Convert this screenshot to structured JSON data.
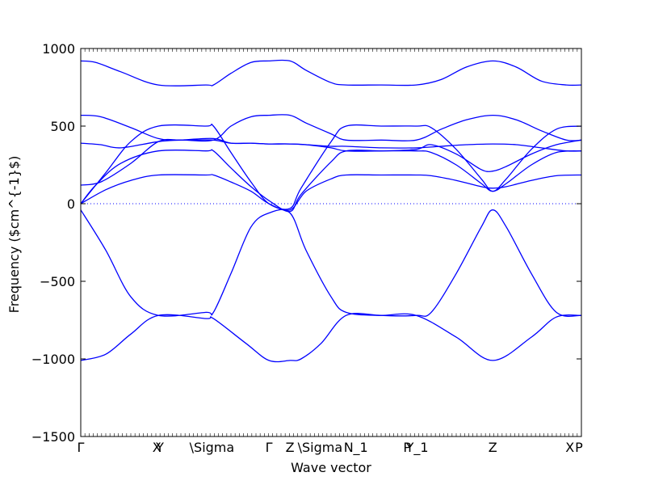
{
  "chart_data": {
    "type": "line",
    "xlabel": "Wave vector",
    "ylabel": "Frequency ($cm^{-1}$)",
    "ylim": [
      -1500,
      1000
    ],
    "y_ticks": [
      1000,
      500,
      0,
      -500,
      -1000,
      -1500
    ],
    "y_tick_labels": [
      "1000",
      "500",
      "0",
      "−500",
      "−1000",
      "−1500"
    ],
    "x_ticks": [
      {
        "label": "Γ",
        "x": 0.0
      },
      {
        "label": "X",
        "x": 0.152
      },
      {
        "label": "Y",
        "x": 0.158
      },
      {
        "label": "\\Sigma",
        "x": 0.262
      },
      {
        "label": "Γ",
        "x": 0.376
      },
      {
        "label": "Z",
        "x": 0.418
      },
      {
        "label": "\\Sigma",
        "x": 0.478
      },
      {
        "label": "N",
        "x": 0.535
      },
      {
        "label": "_1",
        "x": 0.559
      },
      {
        "label": "P",
        "x": 0.652
      },
      {
        "label": "Y_1",
        "x": 0.672
      },
      {
        "label": "Z",
        "x": 0.823
      },
      {
        "label": "X",
        "x": 0.977
      },
      {
        "label": "P",
        "x": 0.995
      }
    ],
    "zero_line": true,
    "line_color": "#0000ff",
    "series": [
      {
        "x": [
          0.0,
          0.05,
          0.1,
          0.155,
          0.25,
          0.265,
          0.33,
          0.376,
          0.418,
          0.44,
          0.48,
          0.53,
          0.6,
          0.67,
          0.75,
          0.823,
          0.9,
          0.95,
          1.0
        ],
        "y": [
          -1010,
          -970,
          -840,
          -720,
          -740,
          -740,
          -900,
          -1010,
          -1010,
          -1000,
          -900,
          -720,
          -720,
          -720,
          -860,
          -1010,
          -860,
          -730,
          -720
        ]
      },
      {
        "x": [
          0.0,
          0.05,
          0.1,
          0.155,
          0.25,
          0.265,
          0.3,
          0.34,
          0.376,
          0.418,
          0.45,
          0.5,
          0.53,
          0.6,
          0.67,
          0.7,
          0.75,
          0.8,
          0.823,
          0.85,
          0.9,
          0.95,
          1.0
        ],
        "y": [
          -40,
          -300,
          -600,
          -720,
          -700,
          -700,
          -450,
          -150,
          -60,
          -60,
          -300,
          -600,
          -700,
          -720,
          -720,
          -700,
          -450,
          -150,
          -40,
          -150,
          -450,
          -700,
          -720
        ]
      },
      {
        "x": [
          0.0,
          0.05,
          0.1,
          0.155,
          0.25,
          0.265,
          0.3,
          0.34,
          0.376,
          0.418,
          0.45,
          0.5,
          0.53,
          0.6,
          0.67,
          0.7,
          0.75,
          0.8,
          0.823,
          0.85,
          0.9,
          0.95,
          1.0
        ],
        "y": [
          0,
          90,
          150,
          185,
          185,
          185,
          140,
          80,
          0,
          -40,
          80,
          160,
          185,
          185,
          185,
          180,
          150,
          110,
          100,
          110,
          150,
          180,
          185
        ]
      },
      {
        "x": [
          0.0,
          0.03,
          0.08,
          0.155,
          0.25,
          0.265,
          0.3,
          0.34,
          0.376,
          0.418,
          0.44,
          0.5,
          0.53,
          0.6,
          0.67,
          0.7,
          0.75,
          0.8,
          0.823,
          0.85,
          0.9,
          0.95,
          1.0
        ],
        "y": [
          0,
          120,
          260,
          340,
          340,
          340,
          230,
          110,
          20,
          -50,
          60,
          270,
          340,
          340,
          340,
          330,
          250,
          130,
          80,
          130,
          250,
          330,
          340
        ]
      },
      {
        "x": [
          0.0,
          0.05,
          0.1,
          0.155,
          0.25,
          0.265,
          0.3,
          0.34,
          0.376,
          0.418,
          0.44,
          0.5,
          0.53,
          0.6,
          0.67,
          0.7,
          0.75,
          0.8,
          0.823,
          0.85,
          0.9,
          0.95,
          1.0
        ],
        "y": [
          0,
          200,
          400,
          500,
          500,
          500,
          330,
          140,
          0,
          -30,
          100,
          400,
          500,
          500,
          500,
          490,
          350,
          160,
          80,
          160,
          350,
          480,
          500
        ]
      },
      {
        "x": [
          0.0,
          0.04,
          0.1,
          0.155,
          0.2,
          0.265,
          0.3,
          0.34,
          0.376,
          0.418,
          0.45,
          0.5,
          0.53,
          0.6,
          0.67,
          0.72,
          0.77,
          0.823,
          0.87,
          0.92,
          0.97,
          1.0
        ],
        "y": [
          120,
          140,
          260,
          400,
          410,
          410,
          500,
          560,
          570,
          570,
          520,
          450,
          410,
          410,
          410,
          480,
          540,
          570,
          540,
          470,
          410,
          410
        ]
      },
      {
        "x": [
          0.0,
          0.04,
          0.1,
          0.155,
          0.2,
          0.265,
          0.3,
          0.34,
          0.376,
          0.418,
          0.45,
          0.5,
          0.53,
          0.6,
          0.67,
          0.72,
          0.77,
          0.823,
          0.87,
          0.92,
          0.97,
          1.0
        ],
        "y": [
          570,
          560,
          490,
          420,
          410,
          410,
          390,
          390,
          385,
          385,
          380,
          370,
          370,
          360,
          360,
          370,
          380,
          385,
          380,
          360,
          340,
          340
        ]
      },
      {
        "x": [
          0.0,
          0.04,
          0.08,
          0.155,
          0.2,
          0.265,
          0.3,
          0.34,
          0.376,
          0.418,
          0.45,
          0.5,
          0.53,
          0.6,
          0.67,
          0.7,
          0.75,
          0.8,
          0.823,
          0.85,
          0.9,
          0.95,
          1.0
        ],
        "y": [
          390,
          380,
          360,
          400,
          410,
          420,
          390,
          390,
          385,
          385,
          380,
          360,
          340,
          340,
          350,
          380,
          320,
          220,
          210,
          240,
          320,
          380,
          410
        ]
      },
      {
        "x": [
          0.0,
          0.03,
          0.08,
          0.155,
          0.25,
          0.265,
          0.3,
          0.34,
          0.376,
          0.418,
          0.45,
          0.5,
          0.53,
          0.6,
          0.67,
          0.72,
          0.77,
          0.823,
          0.87,
          0.92,
          0.97,
          1.0
        ],
        "y": [
          920,
          910,
          850,
          765,
          765,
          765,
          840,
          910,
          920,
          920,
          860,
          780,
          765,
          765,
          765,
          800,
          880,
          920,
          880,
          790,
          765,
          765
        ]
      }
    ]
  }
}
